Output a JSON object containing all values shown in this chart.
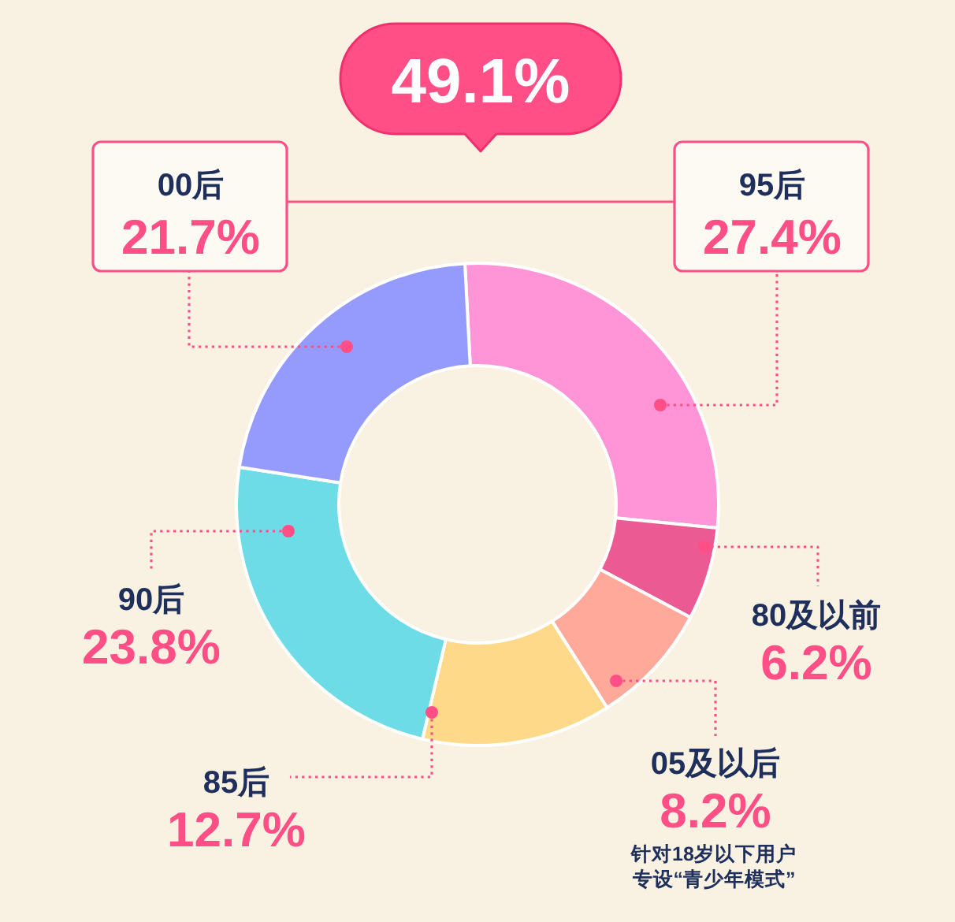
{
  "chart_data": {
    "type": "donut",
    "categories": [
      "95后",
      "80及以前",
      "05及以后",
      "85后",
      "90后",
      "00后"
    ],
    "values": [
      27.4,
      6.2,
      8.2,
      12.7,
      23.8,
      21.7
    ],
    "value_labels": [
      "27.4%",
      "6.2%",
      "8.2%",
      "12.7%",
      "23.8%",
      "21.7%"
    ],
    "colors": [
      "#ff94d6",
      "#ec5a93",
      "#ffa99a",
      "#ffd98a",
      "#6ddce6",
      "#959bfc"
    ],
    "annotations": [
      "49.1%",
      "针对18岁以下用户专设“青少年模式”"
    ]
  }
}
